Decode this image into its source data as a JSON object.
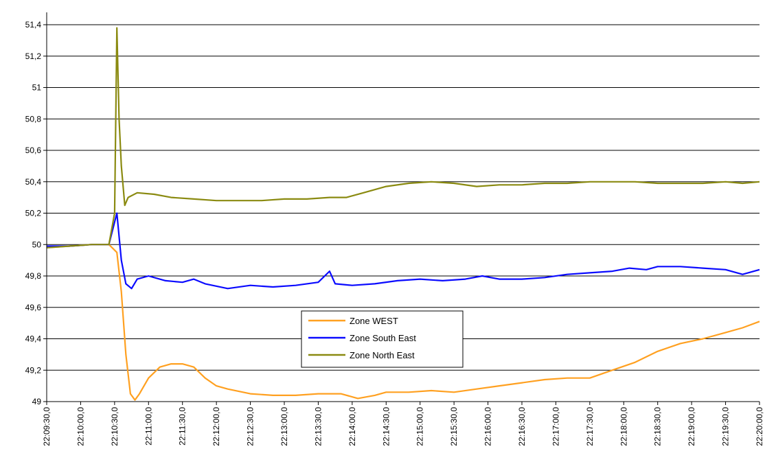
{
  "chart_data": {
    "type": "line",
    "title": "",
    "xlabel": "",
    "ylabel": "",
    "x_tick_labels": [
      "22:09:30,0",
      "22:10:00,0",
      "22:10:30,0",
      "22:11:00,0",
      "22:11:30,0",
      "22:12:00,0",
      "22:12:30,0",
      "22:13:00,0",
      "22:13:30,0",
      "22:14:00,0",
      "22:14:30,0",
      "22:15:00,0",
      "22:15:30,0",
      "22:16:00,0",
      "22:16:30,0",
      "22:17:00,0",
      "22:17:30,0",
      "22:18:00,0",
      "22:18:30,0",
      "22:19:00,0",
      "22:19:30,0",
      "22:20:00,0"
    ],
    "xlim_seconds_after_22_09_30": [
      0,
      630
    ],
    "y_ticks": [
      49,
      49.2,
      49.4,
      49.6,
      49.8,
      50,
      50.2,
      50.4,
      50.6,
      50.8,
      51,
      51.2,
      51.4
    ],
    "y_tick_labels": [
      "49",
      "49,2",
      "49,4",
      "49,6",
      "49,8",
      "50",
      "50,2",
      "50,4",
      "50,6",
      "50,8",
      "51",
      "51,2",
      "51,4"
    ],
    "ylim": [
      49,
      51.5
    ],
    "grid": "horizontal",
    "legend_position": "center",
    "series": [
      {
        "name": "Zone WEST",
        "color": "#ffa020",
        "points": [
          [
            0,
            49.98
          ],
          [
            20,
            49.99
          ],
          [
            40,
            50.0
          ],
          [
            55,
            50.0
          ],
          [
            62,
            49.95
          ],
          [
            66,
            49.7
          ],
          [
            70,
            49.3
          ],
          [
            74,
            49.05
          ],
          [
            78,
            49.01
          ],
          [
            82,
            49.05
          ],
          [
            90,
            49.15
          ],
          [
            100,
            49.22
          ],
          [
            110,
            49.24
          ],
          [
            120,
            49.24
          ],
          [
            130,
            49.22
          ],
          [
            140,
            49.15
          ],
          [
            150,
            49.1
          ],
          [
            160,
            49.08
          ],
          [
            180,
            49.05
          ],
          [
            200,
            49.04
          ],
          [
            220,
            49.04
          ],
          [
            240,
            49.05
          ],
          [
            260,
            49.05
          ],
          [
            275,
            49.02
          ],
          [
            290,
            49.04
          ],
          [
            300,
            49.06
          ],
          [
            320,
            49.06
          ],
          [
            340,
            49.07
          ],
          [
            360,
            49.06
          ],
          [
            380,
            49.08
          ],
          [
            400,
            49.1
          ],
          [
            420,
            49.12
          ],
          [
            440,
            49.14
          ],
          [
            460,
            49.15
          ],
          [
            480,
            49.15
          ],
          [
            500,
            49.2
          ],
          [
            520,
            49.25
          ],
          [
            540,
            49.32
          ],
          [
            560,
            49.37
          ],
          [
            580,
            49.4
          ],
          [
            600,
            49.44
          ],
          [
            615,
            49.47
          ],
          [
            630,
            49.51
          ]
        ]
      },
      {
        "name": "Zone South East",
        "color": "#0a0aff",
        "points": [
          [
            0,
            49.99
          ],
          [
            20,
            49.99
          ],
          [
            40,
            50.0
          ],
          [
            55,
            50.0
          ],
          [
            62,
            50.2
          ],
          [
            66,
            49.9
          ],
          [
            70,
            49.75
          ],
          [
            75,
            49.72
          ],
          [
            80,
            49.78
          ],
          [
            90,
            49.8
          ],
          [
            105,
            49.77
          ],
          [
            120,
            49.76
          ],
          [
            130,
            49.78
          ],
          [
            140,
            49.75
          ],
          [
            160,
            49.72
          ],
          [
            180,
            49.74
          ],
          [
            200,
            49.73
          ],
          [
            220,
            49.74
          ],
          [
            240,
            49.76
          ],
          [
            250,
            49.83
          ],
          [
            255,
            49.75
          ],
          [
            270,
            49.74
          ],
          [
            290,
            49.75
          ],
          [
            310,
            49.77
          ],
          [
            330,
            49.78
          ],
          [
            350,
            49.77
          ],
          [
            370,
            49.78
          ],
          [
            385,
            49.8
          ],
          [
            400,
            49.78
          ],
          [
            420,
            49.78
          ],
          [
            440,
            49.79
          ],
          [
            460,
            49.81
          ],
          [
            480,
            49.82
          ],
          [
            500,
            49.83
          ],
          [
            515,
            49.85
          ],
          [
            530,
            49.84
          ],
          [
            540,
            49.86
          ],
          [
            560,
            49.86
          ],
          [
            580,
            49.85
          ],
          [
            600,
            49.84
          ],
          [
            615,
            49.81
          ],
          [
            630,
            49.84
          ]
        ]
      },
      {
        "name": "Zone North East",
        "color": "#8a8a10",
        "points": [
          [
            0,
            49.98
          ],
          [
            20,
            49.99
          ],
          [
            40,
            50.0
          ],
          [
            55,
            50.0
          ],
          [
            60,
            50.2
          ],
          [
            62,
            51.38
          ],
          [
            64,
            50.8
          ],
          [
            66,
            50.5
          ],
          [
            69,
            50.25
          ],
          [
            72,
            50.3
          ],
          [
            80,
            50.33
          ],
          [
            95,
            50.32
          ],
          [
            110,
            50.3
          ],
          [
            130,
            50.29
          ],
          [
            150,
            50.28
          ],
          [
            170,
            50.28
          ],
          [
            190,
            50.28
          ],
          [
            210,
            50.29
          ],
          [
            230,
            50.29
          ],
          [
            250,
            50.3
          ],
          [
            265,
            50.3
          ],
          [
            280,
            50.33
          ],
          [
            300,
            50.37
          ],
          [
            320,
            50.39
          ],
          [
            340,
            50.4
          ],
          [
            360,
            50.39
          ],
          [
            380,
            50.37
          ],
          [
            400,
            50.38
          ],
          [
            420,
            50.38
          ],
          [
            440,
            50.39
          ],
          [
            460,
            50.39
          ],
          [
            480,
            50.4
          ],
          [
            500,
            50.4
          ],
          [
            520,
            50.4
          ],
          [
            540,
            50.39
          ],
          [
            560,
            50.39
          ],
          [
            580,
            50.39
          ],
          [
            600,
            50.4
          ],
          [
            615,
            50.39
          ],
          [
            630,
            50.4
          ]
        ]
      }
    ]
  }
}
